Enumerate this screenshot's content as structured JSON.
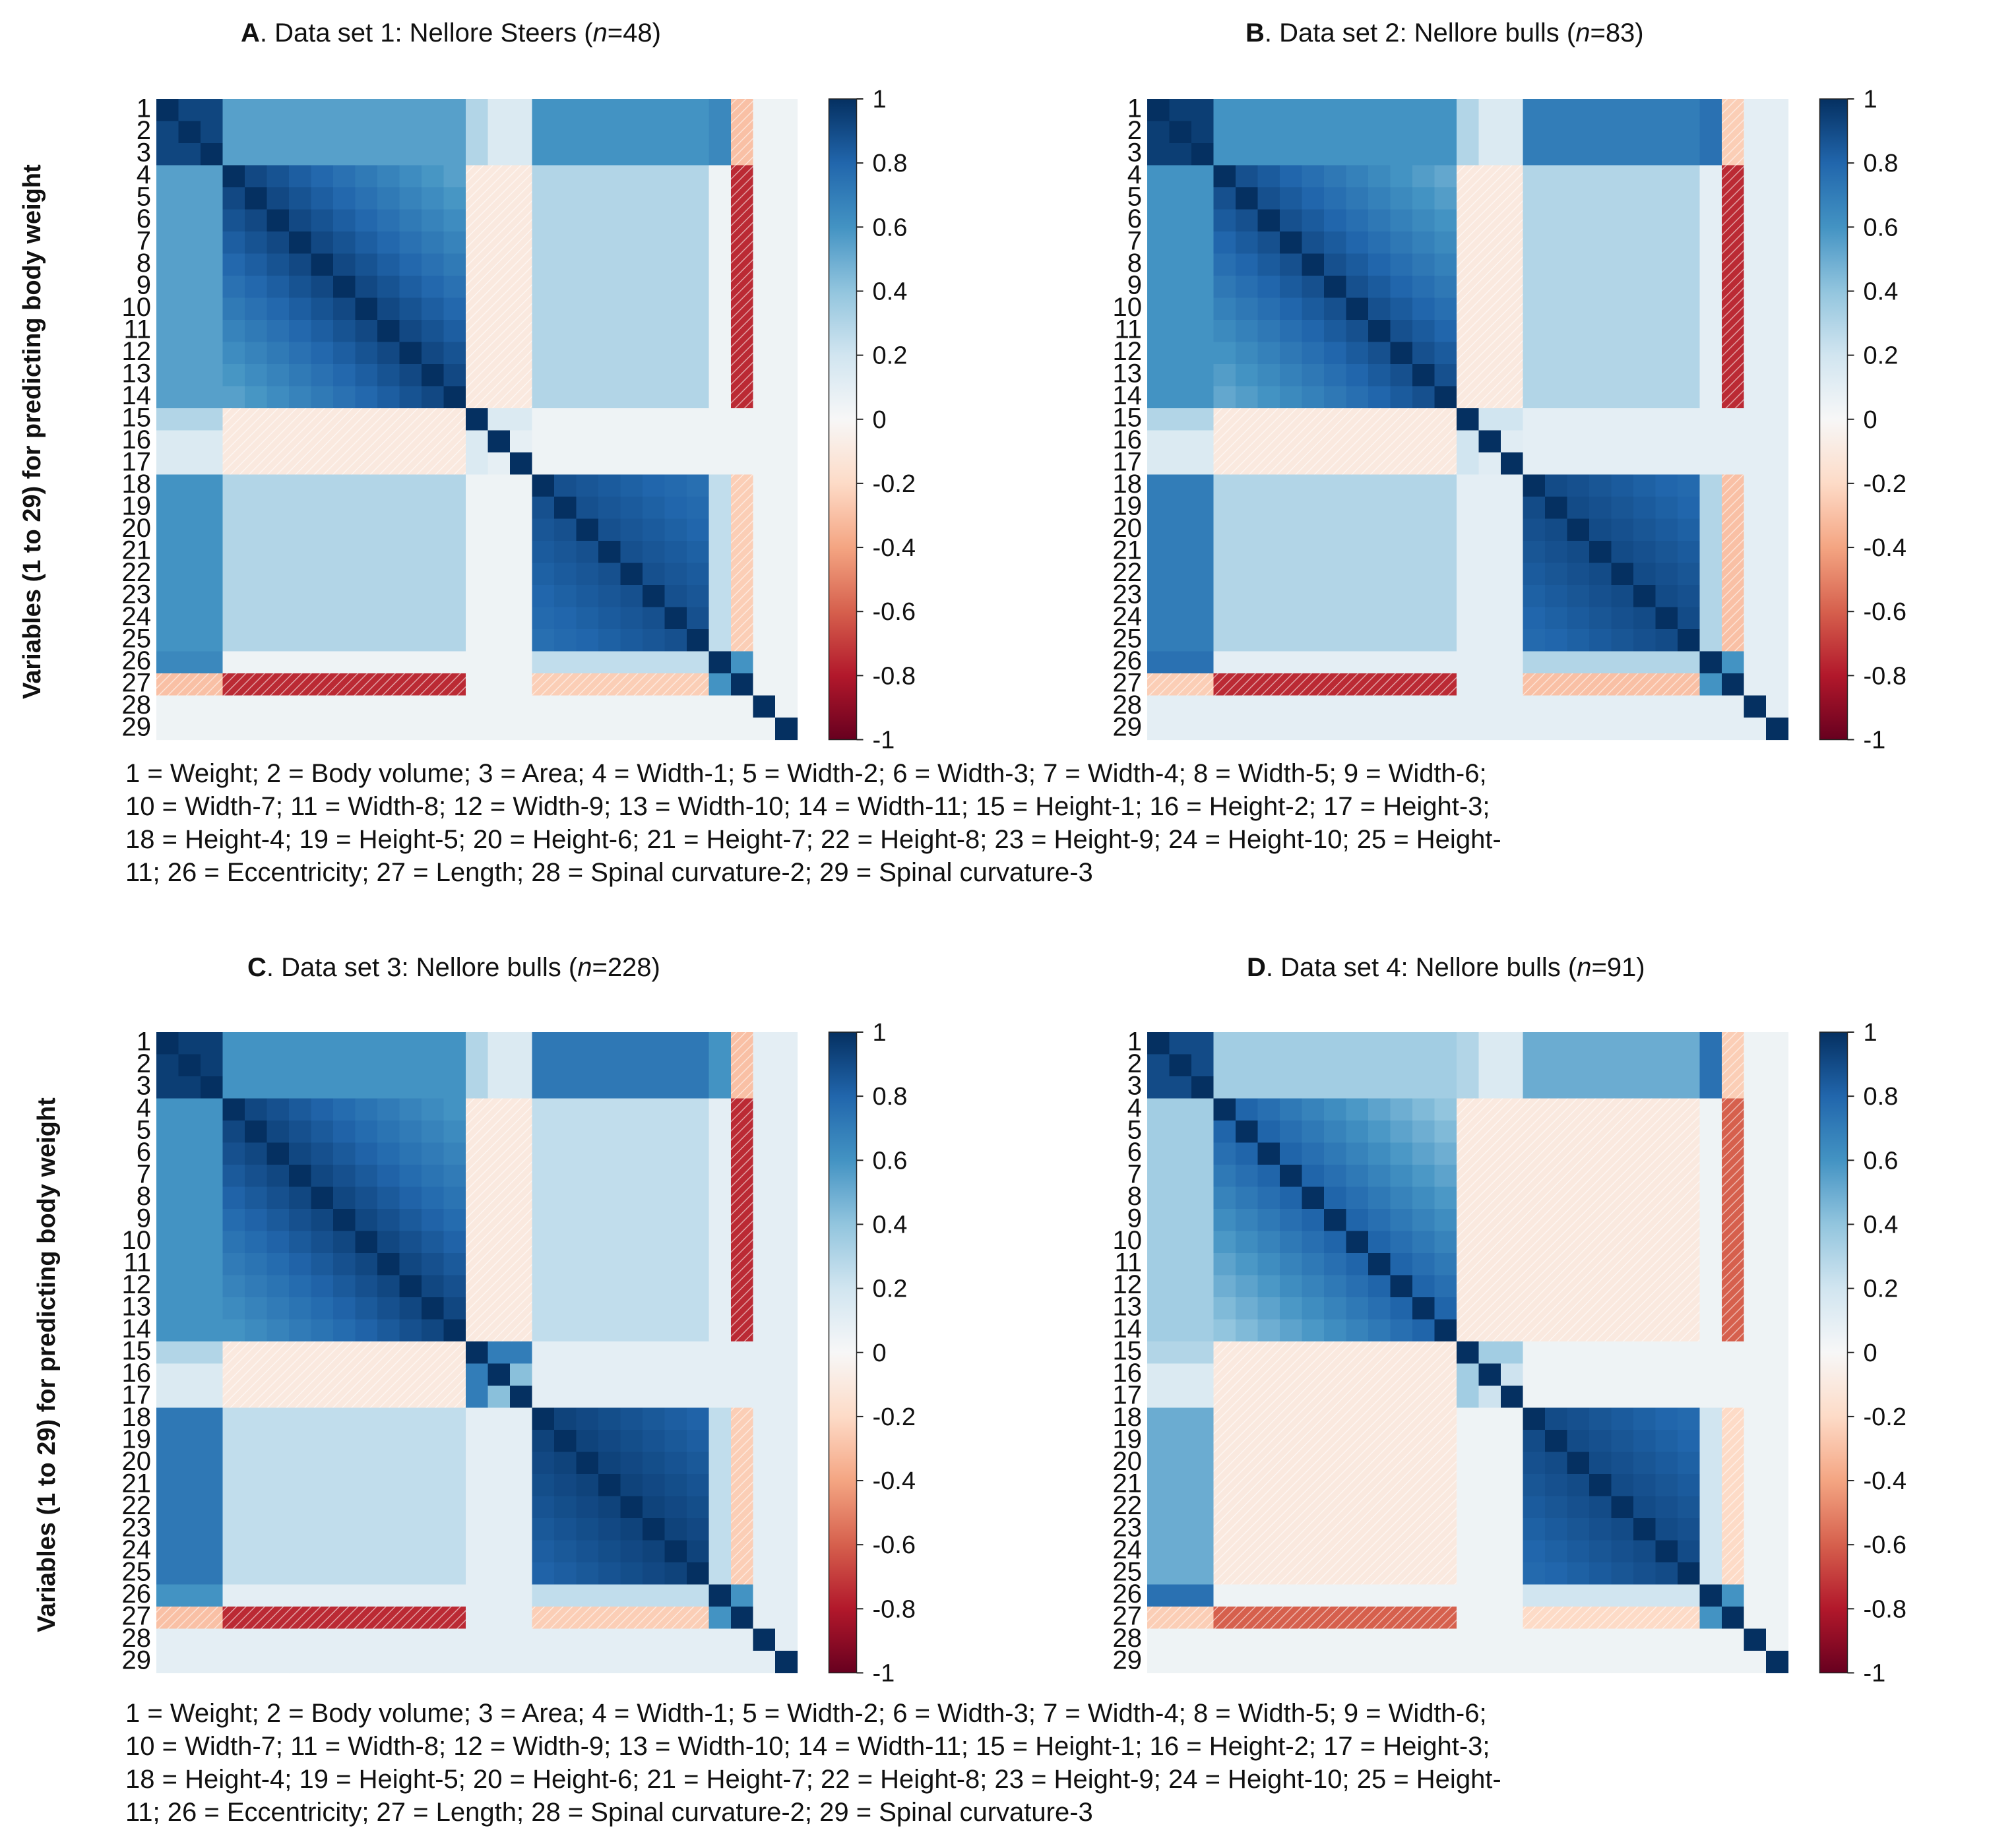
{
  "ylabel": "Variables (1 to 29)  for predicting body weight",
  "legend_lines": [
    "1 = Weight; 2 = Body volume; 3 = Area; 4 = Width-1; 5 = Width-2; 6 = Width-3; 7 = Width-4; 8 = Width-5; 9 = Width-6;",
    "10 = Width-7; 11 = Width-8; 12 = Width-9; 13 = Width-10; 14 = Width-11; 15 = Height-1; 16 = Height-2; 17 = Height-3;",
    "18 = Height-4; 19 = Height-5; 20 = Height-6; 21 = Height-7; 22 = Height-8; 23 = Height-9; 24 = Height-10; 25 = Height-",
    "11; 26 = Eccentricity; 27 = Length; 28 = Spinal curvature-2; 29 = Spinal curvature-3"
  ],
  "colors": {
    "strong_positive": "#0b2c5e",
    "positive": "#3a7bbf",
    "zero": "#f7f7f7",
    "negative": "#d97b5c",
    "strong_negative": "#7e0a1d"
  },
  "chart_data": [
    {
      "type": "heatmap",
      "letter": "A",
      "title_text": ". Data set 1: Nellore Steers (",
      "n_label": "n",
      "n_value": "=48)",
      "categories": [
        "1",
        "2",
        "3",
        "4",
        "5",
        "6",
        "7",
        "8",
        "9",
        "10",
        "11",
        "12",
        "13",
        "14",
        "15",
        "16",
        "17",
        "18",
        "19",
        "20",
        "21",
        "22",
        "23",
        "24",
        "25",
        "26",
        "27",
        "28",
        "29"
      ],
      "colorbar": {
        "range": [
          -1,
          1
        ],
        "ticks": [
          "1",
          "0.8",
          "0.6",
          "0.4",
          "0.2",
          "0",
          "-0.2",
          "-0.4",
          "-0.6",
          "-0.8",
          "-1"
        ]
      },
      "profile": {
        "r12": 0.92,
        "r_bw": 0.55,
        "r_bh": 0.6,
        "r_ecc": 0.65,
        "r_len": -0.3,
        "r_ww": 0.75,
        "decay": 0.04,
        "r_hh": 0.9,
        "r_wh": 0.3,
        "r_len_w": -0.75,
        "r_len_h": -0.25,
        "r_ecc_w": 0.05,
        "r_ecc_h": 0.25,
        "r_h1": 0.15,
        "r_sc": 0.05
      }
    },
    {
      "type": "heatmap",
      "letter": "B",
      "title_text": ". Data set 2: Nellore bulls (",
      "n_label": "n",
      "n_value": "=83)",
      "categories": [
        "1",
        "2",
        "3",
        "4",
        "5",
        "6",
        "7",
        "8",
        "9",
        "10",
        "11",
        "12",
        "13",
        "14",
        "15",
        "16",
        "17",
        "18",
        "19",
        "20",
        "21",
        "22",
        "23",
        "24",
        "25",
        "26",
        "27",
        "28",
        "29"
      ],
      "colorbar": {
        "range": [
          -1,
          1
        ],
        "ticks": [
          "1",
          "0.8",
          "0.6",
          "0.4",
          "0.2",
          "0",
          "-0.2",
          "-0.4",
          "-0.6",
          "-0.8",
          "-1"
        ]
      },
      "profile": {
        "r12": 0.95,
        "r_bw": 0.6,
        "r_bh": 0.7,
        "r_ecc": 0.75,
        "r_len": -0.25,
        "r_ww": 0.72,
        "decay": 0.04,
        "r_hh": 0.92,
        "r_wh": 0.3,
        "r_len_w": -0.75,
        "r_len_h": -0.3,
        "r_ecc_w": 0.1,
        "r_ecc_h": 0.3,
        "r_h1": 0.2,
        "r_sc": 0.1
      }
    },
    {
      "type": "heatmap",
      "letter": "C",
      "title_text": ". Data set 3: Nellore bulls (",
      "n_label": "n",
      "n_value": "=228)",
      "categories": [
        "1",
        "2",
        "3",
        "4",
        "5",
        "6",
        "7",
        "8",
        "9",
        "10",
        "11",
        "12",
        "13",
        "14",
        "15",
        "16",
        "17",
        "18",
        "19",
        "20",
        "21",
        "22",
        "23",
        "24",
        "25",
        "26",
        "27",
        "28",
        "29"
      ],
      "colorbar": {
        "range": [
          -1,
          1
        ],
        "ticks": [
          "1",
          "0.8",
          "0.6",
          "0.4",
          "0.2",
          "0",
          "-0.2",
          "-0.4",
          "-0.6",
          "-0.8",
          "-1"
        ]
      },
      "profile": {
        "r12": 0.95,
        "r_bw": 0.6,
        "r_bh": 0.72,
        "r_ecc": 0.6,
        "r_len": -0.3,
        "r_ww": 0.75,
        "decay": 0.035,
        "r_hh": 0.95,
        "r_wh": 0.25,
        "r_len_w": -0.75,
        "r_len_h": -0.25,
        "r_ecc_w": 0.1,
        "r_ecc_h": 0.25,
        "r_h1": 0.7,
        "r_sc": 0.1
      }
    },
    {
      "type": "heatmap",
      "letter": "D",
      "title_text": ". Data set 4: Nellore bulls (",
      "n_label": "n",
      "n_value": "=91)",
      "categories": [
        "1",
        "2",
        "3",
        "4",
        "5",
        "6",
        "7",
        "8",
        "9",
        "10",
        "11",
        "12",
        "13",
        "14",
        "15",
        "16",
        "17",
        "18",
        "19",
        "20",
        "21",
        "22",
        "23",
        "24",
        "25",
        "26",
        "27",
        "28",
        "29"
      ],
      "colorbar": {
        "range": [
          -1,
          1
        ],
        "ticks": [
          "1",
          "0.8",
          "0.6",
          "0.4",
          "0.2",
          "0",
          "-0.2",
          "-0.4",
          "-0.6",
          "-0.8",
          "-1"
        ]
      },
      "profile": {
        "r12": 0.9,
        "r_bw": 0.35,
        "r_bh": 0.5,
        "r_ecc": 0.75,
        "r_len": -0.25,
        "r_ww": 0.65,
        "decay": 0.045,
        "r_hh": 0.92,
        "r_wh": -0.1,
        "r_len_w": -0.6,
        "r_len_h": -0.2,
        "r_ecc_w": 0.05,
        "r_ecc_h": 0.2,
        "r_h1": 0.35,
        "r_sc": 0.05
      }
    }
  ]
}
